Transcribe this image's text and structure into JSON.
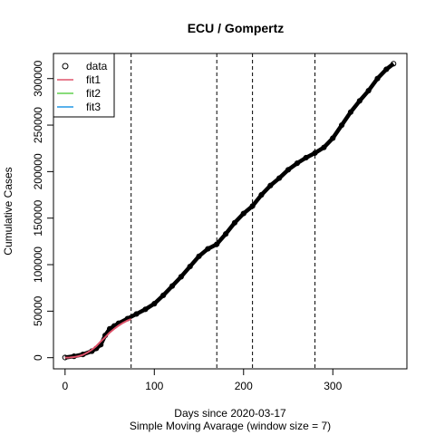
{
  "chart_data": {
    "type": "line",
    "title": "ECU / Gompertz",
    "xlabel": "Days since 2020-03-17",
    "xlabel2": "Simple Moving Avarage (window size = 7)",
    "ylabel": "Cumulative Cases",
    "xlim": [
      -13,
      383
    ],
    "ylim": [
      -12000,
      327000
    ],
    "xticks": [
      0,
      100,
      200,
      300
    ],
    "yticks": [
      0,
      50000,
      100000,
      150000,
      200000,
      250000,
      300000
    ],
    "vlines": [
      74,
      170,
      210,
      280
    ],
    "legend": {
      "position": "top-left",
      "entries": [
        {
          "label": "data",
          "symbol": "circle",
          "color": "#000000"
        },
        {
          "label": "fit1",
          "symbol": "line",
          "color": "#DF536B"
        },
        {
          "label": "fit2",
          "symbol": "line",
          "color": "#61D04F"
        },
        {
          "label": "fit3",
          "symbol": "line",
          "color": "#2297E6"
        }
      ]
    },
    "data_series": {
      "name": "data",
      "x": [
        0,
        10,
        20,
        30,
        35,
        40,
        45,
        50,
        55,
        60,
        70,
        80,
        90,
        100,
        110,
        120,
        130,
        140,
        150,
        160,
        170,
        180,
        190,
        200,
        210,
        220,
        230,
        240,
        250,
        260,
        270,
        280,
        290,
        300,
        310,
        320,
        330,
        340,
        350,
        360,
        368
      ],
      "y": [
        200,
        1500,
        3500,
        7000,
        10000,
        14000,
        24000,
        31000,
        34000,
        37000,
        42000,
        47000,
        52000,
        58000,
        67000,
        77000,
        87000,
        98000,
        109000,
        117000,
        122000,
        133000,
        145000,
        155000,
        163000,
        175000,
        185000,
        193000,
        202000,
        209000,
        215000,
        220000,
        226000,
        236000,
        250000,
        264000,
        276000,
        287000,
        300000,
        310000,
        316000
      ]
    },
    "fit1": {
      "name": "fit1",
      "x": [
        0,
        5,
        10,
        15,
        20,
        25,
        30,
        35,
        40,
        45,
        50,
        55,
        60,
        65,
        70,
        74
      ],
      "y": [
        0,
        200,
        700,
        1500,
        3000,
        5500,
        8500,
        12500,
        17500,
        22000,
        27000,
        31000,
        34500,
        37500,
        40000,
        41500
      ]
    }
  }
}
